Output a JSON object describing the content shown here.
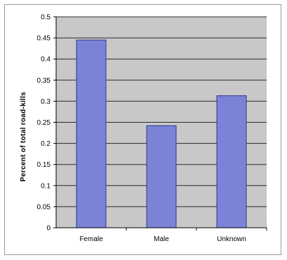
{
  "chart_data": {
    "type": "bar",
    "categories": [
      "Female",
      "Male",
      "Unknown"
    ],
    "values": [
      0.445,
      0.242,
      0.313
    ],
    "title": "",
    "xlabel": "",
    "ylabel": "Percent of total road-kills",
    "ylim": [
      0,
      0.5
    ],
    "yticks": [
      "0",
      "0.05",
      "0.1",
      "0.15",
      "0.2",
      "0.25",
      "0.3",
      "0.35",
      "0.4",
      "0.45",
      "0.5"
    ],
    "grid": true,
    "legend": "none",
    "colors": {
      "plot_background": "#c8c8c8",
      "bar_fill": "#7b83d6",
      "bar_edge": "#2f3a8f",
      "gridline": "#2a2a2a"
    }
  }
}
